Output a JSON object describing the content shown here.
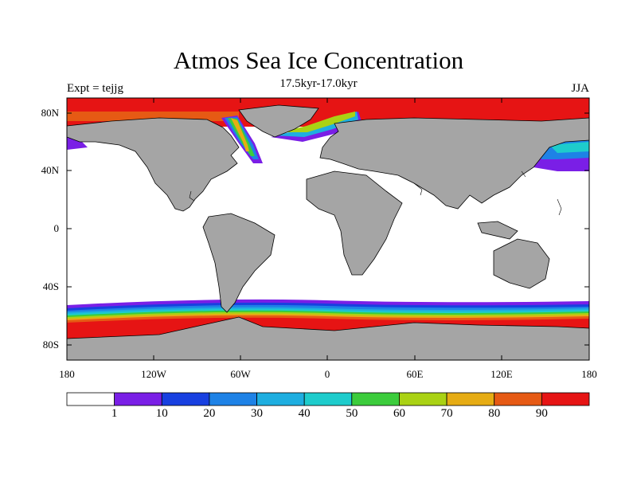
{
  "title": "Atmos Sea Ice Concentration",
  "subtitle": "17.5kyr-17.0kyr",
  "expt_label": "Expt = tejjg",
  "season": "JJA",
  "lat_labels": [
    "80N",
    "40N",
    "0",
    "40S",
    "80S"
  ],
  "lon_labels": [
    "180",
    "120W",
    "60W",
    "0",
    "60E",
    "120E",
    "180"
  ],
  "colorbar": {
    "labels": [
      "1",
      "10",
      "20",
      "30",
      "40",
      "50",
      "60",
      "70",
      "80",
      "90"
    ],
    "colors": [
      "#ffffff",
      "#7a1fe6",
      "#1840e0",
      "#1e82e6",
      "#1eaee0",
      "#1ecccc",
      "#3ccc3c",
      "#aad214",
      "#e6ac14",
      "#e65a14",
      "#e61414"
    ]
  },
  "land_color": "#a5a5a5"
}
